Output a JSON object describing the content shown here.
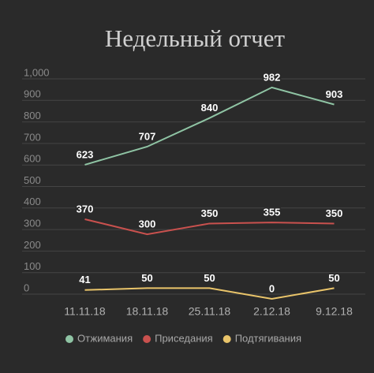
{
  "chart_data": {
    "type": "line",
    "title": "Недельный отчет",
    "categories": [
      "11.11.18",
      "18.11.18",
      "25.11.18",
      "2.12.18",
      "9.12.18"
    ],
    "series": [
      {
        "name": "Отжимания",
        "color": "#8fc4a4",
        "values": [
          623,
          707,
          840,
          982,
          903
        ]
      },
      {
        "name": "Приседания",
        "color": "#c9514e",
        "values": [
          370,
          300,
          350,
          355,
          350
        ]
      },
      {
        "name": "Подтягивания",
        "color": "#e9c46a",
        "values": [
          41,
          50,
          50,
          0,
          50
        ]
      }
    ],
    "ylim": [
      0,
      1000
    ],
    "yticks": [
      0,
      100,
      200,
      300,
      400,
      500,
      600,
      700,
      800,
      900,
      {
        "value": 1000,
        "label": "1,000"
      }
    ],
    "grid": true,
    "legend": "bottom"
  }
}
